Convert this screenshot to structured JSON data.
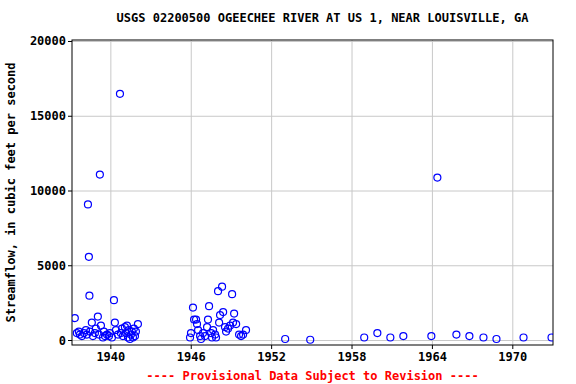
{
  "chart_data": {
    "type": "scatter",
    "title": "USGS 02200500 OGEECHEE RIVER AT US 1, NEAR LOUISVILLE, GA",
    "y_label": "Streamflow, in cubic feet per second",
    "annotations": [
      "---- Provisional Data Subject to Revision ----"
    ],
    "x": [
      1937.31,
      1937.46,
      1937.61,
      1937.69,
      1937.84,
      1937.99,
      1938.14,
      1938.21,
      1938.29,
      1938.36,
      1938.4,
      1938.44,
      1938.58,
      1938.66,
      1938.81,
      1938.88,
      1939.03,
      1939.11,
      1939.18,
      1939.26,
      1939.41,
      1939.48,
      1939.56,
      1939.71,
      1939.86,
      1939.93,
      1940.08,
      1940.23,
      1940.3,
      1940.38,
      1940.53,
      1940.68,
      1940.75,
      1940.83,
      1940.9,
      1941.05,
      1941.13,
      1941.2,
      1941.28,
      1941.35,
      1941.42,
      1941.5,
      1941.57,
      1941.65,
      1941.72,
      1941.8,
      1941.87,
      1942.02,
      1945.91,
      1945.98,
      1946.13,
      1946.21,
      1946.36,
      1946.43,
      1946.51,
      1946.66,
      1946.73,
      1946.88,
      1947.03,
      1947.18,
      1947.25,
      1947.33,
      1947.48,
      1947.55,
      1947.63,
      1947.78,
      1947.85,
      1948.0,
      1948.08,
      1948.15,
      1948.3,
      1948.38,
      1948.52,
      1948.6,
      1948.75,
      1948.9,
      1949.05,
      1949.12,
      1949.2,
      1949.35,
      1949.57,
      1949.72,
      1949.87,
      1950.09,
      1953.01,
      1954.88,
      1958.91,
      1959.89,
      1960.86,
      1961.83,
      1963.92,
      1964.37,
      1965.79,
      1966.76,
      1967.81,
      1968.78,
      1970.8,
      1972.89
    ],
    "values": [
      1500,
      500,
      600,
      400,
      300,
      500,
      700,
      400,
      9100,
      5600,
      3000,
      600,
      1200,
      300,
      500,
      800,
      1600,
      400,
      11100,
      1000,
      200,
      600,
      300,
      400,
      300,
      500,
      200,
      2700,
      1200,
      700,
      400,
      16500,
      500,
      800,
      300,
      900,
      500,
      1000,
      200,
      700,
      100,
      400,
      600,
      200,
      800,
      300,
      600,
      1100,
      200,
      500,
      2200,
      1400,
      1400,
      1100,
      700,
      300,
      100,
      500,
      300,
      900,
      1400,
      2300,
      500,
      200,
      700,
      400,
      200,
      3300,
      1200,
      1700,
      3600,
      1900,
      900,
      600,
      800,
      1000,
      3100,
      1200,
      1800,
      1100,
      400,
      300,
      400,
      700,
      100,
      50,
      200,
      500,
      200,
      300,
      300,
      10900,
      400,
      300,
      200,
      100,
      200,
      200
    ],
    "color": "#0000ff",
    "marker": "circle-open",
    "xlim": [
      1937.1,
      1973.0
    ],
    "xticks": [
      1940,
      1946,
      1952,
      1958,
      1964,
      1970
    ],
    "ylim": [
      -300,
      20100
    ],
    "yticks": [
      0,
      5000,
      10000,
      15000,
      20000
    ],
    "grid": true
  }
}
